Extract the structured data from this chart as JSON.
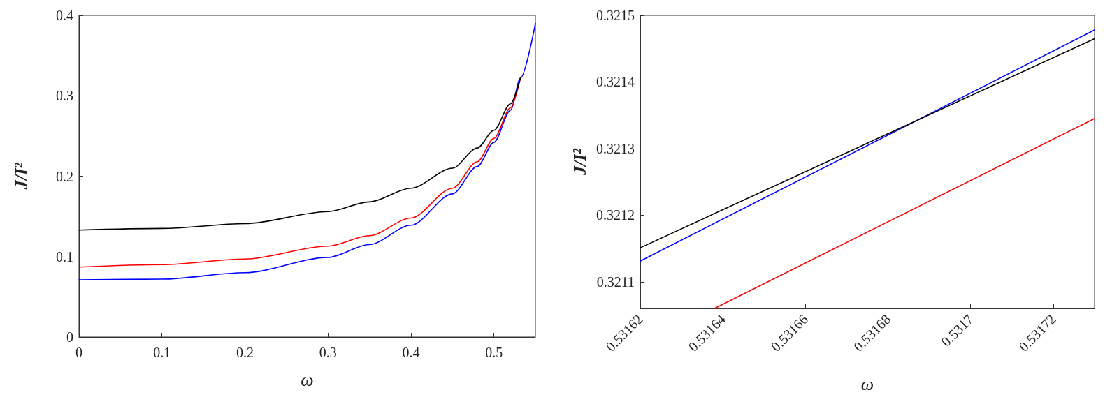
{
  "chart_data": [
    {
      "type": "line",
      "xlabel": "ω",
      "ylabel": "J/I²",
      "xlim": [
        0,
        0.55
      ],
      "ylim": [
        0,
        0.4
      ],
      "xticks": [
        0,
        0.1,
        0.2,
        0.3,
        0.4,
        0.5
      ],
      "yticks": [
        0,
        0.1,
        0.2,
        0.3,
        0.4
      ],
      "grid": false,
      "marker": "none",
      "line_style": "solid",
      "series": [
        {
          "color": "#000000",
          "x": [
            0,
            0.1,
            0.2,
            0.3,
            0.35,
            0.4,
            0.45,
            0.48,
            0.5,
            0.52,
            0.532
          ],
          "values": [
            0.133,
            0.135,
            0.141,
            0.156,
            0.168,
            0.185,
            0.21,
            0.235,
            0.257,
            0.29,
            0.322
          ]
        },
        {
          "color": "#ff0000",
          "x": [
            0,
            0.1,
            0.2,
            0.3,
            0.35,
            0.4,
            0.45,
            0.48,
            0.5,
            0.52,
            0.532
          ],
          "values": [
            0.087,
            0.09,
            0.097,
            0.113,
            0.126,
            0.148,
            0.185,
            0.218,
            0.247,
            0.285,
            0.322
          ]
        },
        {
          "color": "#0000ff",
          "x": [
            0,
            0.1,
            0.2,
            0.3,
            0.35,
            0.4,
            0.45,
            0.48,
            0.5,
            0.52,
            0.532,
            0.55
          ],
          "values": [
            0.071,
            0.072,
            0.08,
            0.099,
            0.115,
            0.139,
            0.178,
            0.212,
            0.242,
            0.282,
            0.322,
            0.39
          ]
        }
      ]
    },
    {
      "type": "line",
      "xlabel": "ω",
      "ylabel": "J/I²",
      "xlim": [
        0.53162,
        0.53173
      ],
      "ylim": [
        0.32106,
        0.3215
      ],
      "xticks": [
        0.53162,
        0.53164,
        0.53166,
        0.53168,
        0.5317,
        0.53172
      ],
      "yticks": [
        0.3211,
        0.3212,
        0.3213,
        0.3214,
        0.3215
      ],
      "grid": false,
      "marker": "none",
      "line_style": "solid",
      "series": [
        {
          "color": "#000000",
          "x": [
            0.53162,
            0.53173
          ],
          "values": [
            0.321151,
            0.321465
          ]
        },
        {
          "color": "#0000ff",
          "x": [
            0.53162,
            0.53173
          ],
          "values": [
            0.321131,
            0.321478
          ]
        },
        {
          "color": "#ff0000",
          "x": [
            0.531638,
            0.53173
          ],
          "values": [
            0.32106,
            0.321345
          ]
        }
      ]
    }
  ]
}
